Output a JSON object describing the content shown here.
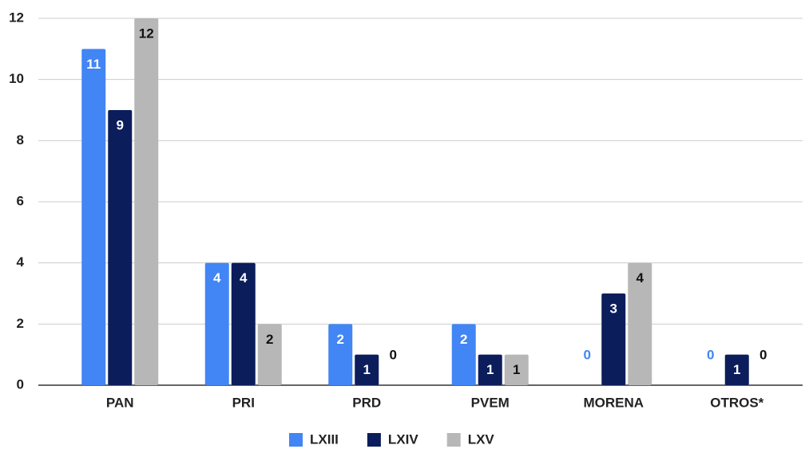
{
  "chart_data": {
    "type": "bar",
    "categories": [
      "PAN",
      "PRI",
      "PRD",
      "PVEM",
      "MORENA",
      "OTROS*"
    ],
    "series": [
      {
        "name": "LXIII",
        "color": "#4285f4",
        "label_color": "#ffffff",
        "values": [
          11,
          4,
          2,
          2,
          0,
          0
        ]
      },
      {
        "name": "LXIV",
        "color": "#0b1d5b",
        "label_color": "#ffffff",
        "values": [
          9,
          4,
          1,
          1,
          3,
          1
        ]
      },
      {
        "name": "LXV",
        "color": "#b7b7b7",
        "label_color": "#111111",
        "values": [
          12,
          2,
          0,
          1,
          4,
          0
        ]
      }
    ],
    "ylim": [
      0,
      12
    ],
    "yticks": [
      0,
      2,
      4,
      6,
      8,
      10,
      12
    ],
    "grid": true,
    "legend": "bottom"
  }
}
